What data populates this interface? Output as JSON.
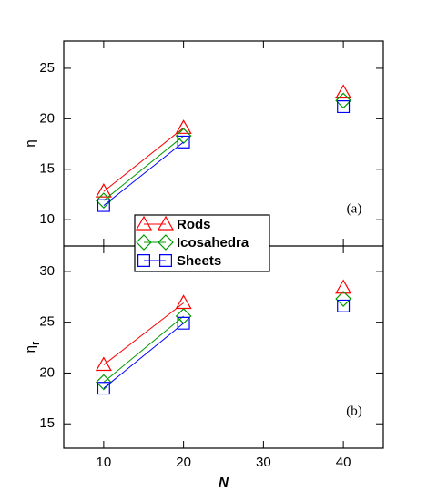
{
  "chart_data": [
    {
      "type": "line",
      "ylabel": "η",
      "annotation": "(a)",
      "x": [
        10,
        20,
        30,
        40
      ],
      "series": [
        {
          "name": "Rods",
          "color": "#ff0000",
          "marker": "triangle",
          "values": [
            12.8,
            19.1,
            null,
            22.6
          ]
        },
        {
          "name": "Icosahedra",
          "color": "#009900",
          "marker": "diamond",
          "values": [
            11.9,
            18.3,
            null,
            21.8
          ]
        },
        {
          "name": "Sheets",
          "color": "#0000ff",
          "marker": "square",
          "values": [
            11.4,
            17.7,
            null,
            21.2
          ]
        }
      ],
      "xlim": [
        5,
        45
      ],
      "xticks": [
        10,
        20,
        30,
        40
      ],
      "ylim": [
        7.4,
        27.7
      ],
      "yticks": [
        10,
        15,
        20,
        25
      ]
    },
    {
      "type": "line",
      "ylabel": "η",
      "ylabel_sub": "r",
      "xlabel": "N",
      "annotation": "(b)",
      "x": [
        10,
        20,
        30,
        40
      ],
      "series": [
        {
          "color": "#ff0000",
          "marker": "triangle",
          "values": [
            20.8,
            26.9,
            null,
            28.4
          ]
        },
        {
          "color": "#009900",
          "marker": "diamond",
          "values": [
            19.1,
            25.6,
            null,
            27.3
          ]
        },
        {
          "color": "#0000ff",
          "marker": "square",
          "values": [
            18.5,
            24.9,
            null,
            26.6
          ]
        }
      ],
      "xlim": [
        5,
        45
      ],
      "xticks": [
        10,
        20,
        30,
        40
      ],
      "ylim": [
        12.6,
        32.5
      ],
      "yticks": [
        15,
        20,
        25,
        30
      ]
    }
  ]
}
